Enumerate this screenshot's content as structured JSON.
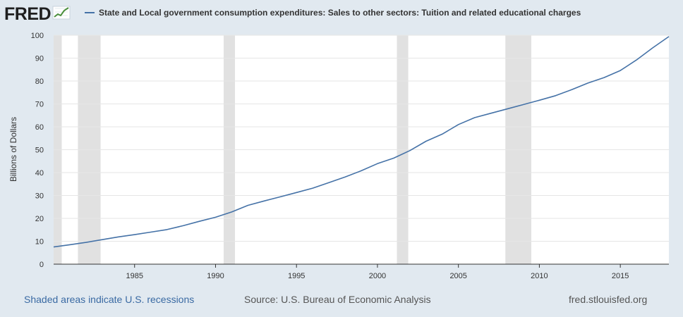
{
  "header": {
    "logo_text": "FRED",
    "logo_icon": "chart-trend-icon",
    "series_title": "State and Local government consumption expenditures: Sales to other sectors: Tuition and related educational charges"
  },
  "footer": {
    "recessions_note": "Shaded areas indicate U.S. recessions",
    "source": "Source: U.S. Bureau of Economic Analysis",
    "site": "fred.stlouisfed.org"
  },
  "colors": {
    "background": "#e1e9f0",
    "plot": "#ffffff",
    "series": "#4572a7",
    "recession": "#e1e1e1",
    "grid": "#e6e6e6"
  },
  "chart_data": {
    "type": "line",
    "title": "State and Local government consumption expenditures: Sales to other sectors: Tuition and related educational charges",
    "xlabel": "",
    "ylabel": "Billions of Dollars",
    "xlim": [
      1980,
      2018
    ],
    "ylim": [
      0,
      100
    ],
    "x_ticks": [
      1985,
      1990,
      1995,
      2000,
      2005,
      2010,
      2015
    ],
    "y_ticks": [
      0,
      10,
      20,
      30,
      40,
      50,
      60,
      70,
      80,
      90,
      100
    ],
    "grid": true,
    "legend": "top-left",
    "recessions": [
      [
        1980.0,
        1980.5
      ],
      [
        1981.5,
        1982.9
      ],
      [
        1990.5,
        1991.2
      ],
      [
        2001.2,
        2001.9
      ],
      [
        2007.9,
        2009.5
      ]
    ],
    "series": [
      {
        "name": "State and Local government consumption expenditures: Sales to other sectors: Tuition and related educational charges",
        "x": [
          1980,
          1981,
          1982,
          1983,
          1984,
          1985,
          1986,
          1987,
          1988,
          1989,
          1990,
          1991,
          1992,
          1993,
          1994,
          1995,
          1996,
          1997,
          1998,
          1999,
          2000,
          2001,
          2002,
          2003,
          2004,
          2005,
          2006,
          2007,
          2008,
          2009,
          2010,
          2011,
          2012,
          2013,
          2014,
          2015,
          2016,
          2017,
          2018
        ],
        "values": [
          7.5,
          8.5,
          9.5,
          10.7,
          11.9,
          12.9,
          14.0,
          15.1,
          16.8,
          18.7,
          20.5,
          22.8,
          25.7,
          27.6,
          29.4,
          31.3,
          33.2,
          35.6,
          38.1,
          40.8,
          43.9,
          46.3,
          49.6,
          53.7,
          56.8,
          61.0,
          64.0,
          65.9,
          67.8,
          69.7,
          71.6,
          73.6,
          76.2,
          79.1,
          81.5,
          84.6,
          89.2,
          94.5,
          99.4
        ]
      }
    ]
  }
}
